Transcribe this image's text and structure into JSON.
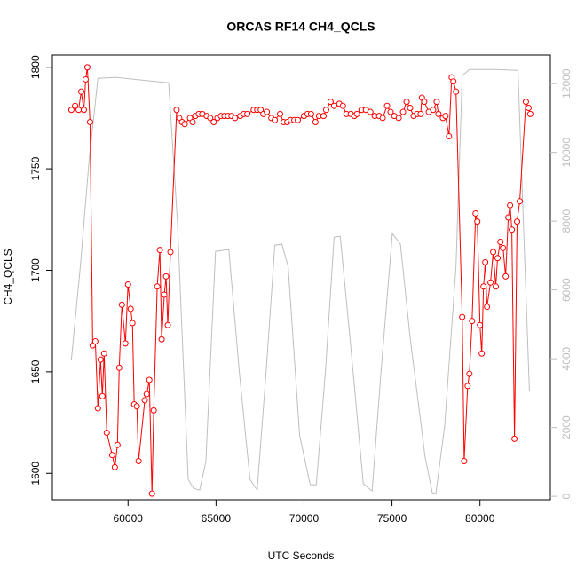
{
  "chart_data": {
    "type": "line",
    "title": "ORCAS RF14 CH4_QCLS",
    "x_label": "UTC Seconds",
    "y_label": "CH4_QCLS",
    "xlim": [
      55700,
      84000
    ],
    "xticks": [
      60000,
      65000,
      70000,
      75000,
      80000
    ],
    "ylim": [
      1587,
      1806
    ],
    "yticks": [
      1600,
      1650,
      1700,
      1750,
      1800
    ],
    "y2lim": [
      -100,
      12830
    ],
    "y2ticks": [
      0,
      2000,
      4000,
      6000,
      8000,
      10000,
      12000
    ],
    "y2_color": "#bebebe",
    "series": [
      {
        "color": "#ff0000",
        "markers": true,
        "x": [
          56780,
          56990,
          57190,
          57340,
          57490,
          57590,
          57690,
          57840,
          57990,
          58140,
          58290,
          58440,
          58540,
          58640,
          58790,
          59100,
          59250,
          59400,
          59500,
          59650,
          59850,
          60000,
          60150,
          60250,
          60350,
          60500,
          60600,
          60950,
          61060,
          61210,
          61360,
          61460,
          61660,
          61810,
          61910,
          62060,
          62160,
          62260,
          62410,
          62760,
          62910,
          63070,
          63220,
          63520,
          63670,
          63820,
          64020,
          64220,
          64470,
          64670,
          64870,
          65080,
          65280,
          65480,
          65680,
          65880,
          66080,
          66380,
          66580,
          66780,
          67140,
          67340,
          67540,
          67690,
          67890,
          68140,
          68340,
          68640,
          68840,
          69050,
          69250,
          69450,
          69650,
          70000,
          70200,
          70400,
          70650,
          70850,
          71110,
          71260,
          71510,
          71710,
          72010,
          72210,
          72410,
          72660,
          72860,
          73010,
          73270,
          73520,
          73770,
          74020,
          74270,
          74470,
          74720,
          74920,
          75130,
          75380,
          75630,
          75830,
          76030,
          76230,
          76430,
          76630,
          76700,
          76830,
          77090,
          77340,
          77540,
          77640,
          77890,
          78040,
          78240,
          78390,
          78490,
          78640,
          78990,
          79100,
          79300,
          79400,
          79550,
          79750,
          79850,
          80000,
          80100,
          80200,
          80300,
          80400,
          80600,
          80750,
          80900,
          81000,
          81160,
          81310,
          81460,
          81610,
          81710,
          81810,
          81960,
          82110,
          82260,
          82610,
          82760,
          82860
        ],
        "values": [
          1779,
          1781,
          1779,
          1788,
          1779,
          1794,
          1800,
          1773,
          1663,
          1665,
          1632,
          1656,
          1638,
          1659,
          1620,
          1609,
          1603,
          1614,
          1652,
          1683,
          1664,
          1693,
          1681,
          1674,
          1634,
          1633,
          1606,
          1636,
          1639,
          1646,
          1590,
          1631,
          1692,
          1710,
          1666,
          1688,
          1697,
          1673,
          1709,
          1779,
          1775,
          1773,
          1772,
          1775,
          1773,
          1776,
          1777,
          1777,
          1776,
          1775,
          1773,
          1775,
          1776,
          1776,
          1776,
          1776,
          1775,
          1776,
          1777,
          1777,
          1779,
          1779,
          1779,
          1777,
          1778,
          1775,
          1774,
          1777,
          1773,
          1773,
          1774,
          1774,
          1774,
          1776,
          1777,
          1777,
          1773,
          1776,
          1776,
          1779,
          1783,
          1781,
          1782,
          1781,
          1777,
          1777,
          1776,
          1777,
          1779,
          1779,
          1778,
          1776,
          1776,
          1775,
          1781,
          1778,
          1776,
          1775,
          1778,
          1783,
          1780,
          1776,
          1777,
          1777,
          1785,
          1783,
          1778,
          1779,
          1783,
          1777,
          1775,
          1776,
          1766,
          1795,
          1793,
          1788,
          1677,
          1606,
          1643,
          1649,
          1675,
          1728,
          1724,
          1673,
          1659,
          1692,
          1704,
          1682,
          1694,
          1709,
          1692,
          1706,
          1714,
          1711,
          1697,
          1726,
          1732,
          1720,
          1617,
          1724,
          1734,
          1783,
          1780,
          1777
        ]
      },
      {
        "color": "#bebebe",
        "axis": "y2",
        "markers": false,
        "x": [
          56780,
          57290,
          57790,
          58290,
          59300,
          60300,
          61310,
          62310,
          62810,
          63420,
          63720,
          64070,
          64420,
          64970,
          65730,
          66330,
          66930,
          67340,
          67840,
          68340,
          68740,
          69100,
          69750,
          70350,
          70700,
          71210,
          71710,
          72060,
          72610,
          73370,
          73870,
          74370,
          75020,
          75480,
          76030,
          76880,
          77290,
          77490,
          77990,
          78640,
          78990,
          79400,
          80900,
          82160,
          82810
        ],
        "values": [
          3974,
          6684,
          9781,
          12155,
          12181,
          12129,
          12077,
          12026,
          7974,
          490,
          232,
          181,
          1006,
          7123,
          7174,
          3587,
          490,
          181,
          3587,
          7303,
          7329,
          6684,
          1781,
          335,
          335,
          3587,
          7535,
          7561,
          4619,
          361,
          155,
          3587,
          7639,
          7329,
          4619,
          1135,
          103,
          77,
          2039,
          6684,
          12232,
          12413,
          12413,
          12387,
          3071
        ]
      }
    ]
  }
}
